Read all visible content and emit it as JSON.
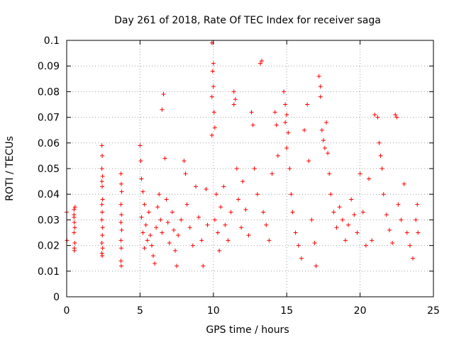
{
  "chart_data": {
    "type": "scatter",
    "title": "Day 261 of 2018, Rate Of TEC Index for receiver saga",
    "xlabel": "GPS time / hours",
    "ylabel": "ROTI / TECUs",
    "xlim": [
      0,
      25
    ],
    "ylim": [
      0,
      0.1
    ],
    "xticks": [
      "0",
      "5",
      "10",
      "15",
      "20",
      "25"
    ],
    "yticks": [
      "0",
      "0.01",
      "0.02",
      "0.03",
      "0.04",
      "0.05",
      "0.06",
      "0.07",
      "0.08",
      "0.09",
      "0.1"
    ],
    "grid": true,
    "marker": "+",
    "color": "#ff0000",
    "points": [
      [
        0.0,
        0.033
      ],
      [
        0.02,
        0.022
      ],
      [
        0.5,
        0.034
      ],
      [
        0.5,
        0.031
      ],
      [
        0.52,
        0.029
      ],
      [
        0.55,
        0.027
      ],
      [
        0.5,
        0.025
      ],
      [
        0.55,
        0.021
      ],
      [
        0.52,
        0.019
      ],
      [
        0.5,
        0.032
      ],
      [
        0.57,
        0.035
      ],
      [
        0.53,
        0.018
      ],
      [
        2.4,
        0.059
      ],
      [
        2.42,
        0.055
      ],
      [
        2.4,
        0.05
      ],
      [
        2.45,
        0.047
      ],
      [
        2.4,
        0.045
      ],
      [
        2.42,
        0.043
      ],
      [
        2.45,
        0.038
      ],
      [
        2.4,
        0.036
      ],
      [
        2.42,
        0.033
      ],
      [
        2.4,
        0.03
      ],
      [
        2.45,
        0.027
      ],
      [
        2.43,
        0.024
      ],
      [
        2.4,
        0.021
      ],
      [
        2.45,
        0.019
      ],
      [
        2.4,
        0.017
      ],
      [
        2.42,
        0.016
      ],
      [
        3.7,
        0.048
      ],
      [
        3.72,
        0.044
      ],
      [
        3.75,
        0.041
      ],
      [
        3.7,
        0.036
      ],
      [
        3.73,
        0.032
      ],
      [
        3.7,
        0.029
      ],
      [
        3.75,
        0.026
      ],
      [
        3.7,
        0.022
      ],
      [
        3.72,
        0.019
      ],
      [
        3.7,
        0.014
      ],
      [
        3.72,
        0.012
      ],
      [
        5.0,
        0.059
      ],
      [
        5.05,
        0.053
      ],
      [
        5.1,
        0.046
      ],
      [
        5.2,
        0.041
      ],
      [
        5.3,
        0.036
      ],
      [
        5.1,
        0.031
      ],
      [
        5.4,
        0.028
      ],
      [
        5.2,
        0.025
      ],
      [
        5.5,
        0.022
      ],
      [
        5.3,
        0.019
      ],
      [
        5.6,
        0.033
      ],
      [
        5.7,
        0.024
      ],
      [
        5.8,
        0.02
      ],
      [
        5.9,
        0.016
      ],
      [
        6.0,
        0.013
      ],
      [
        6.1,
        0.027
      ],
      [
        6.2,
        0.035
      ],
      [
        6.3,
        0.04
      ],
      [
        6.4,
        0.03
      ],
      [
        6.5,
        0.025
      ],
      [
        6.5,
        0.073
      ],
      [
        6.6,
        0.079
      ],
      [
        6.7,
        0.054
      ],
      [
        6.8,
        0.038
      ],
      [
        6.9,
        0.029
      ],
      [
        7.0,
        0.021
      ],
      [
        7.2,
        0.033
      ],
      [
        7.3,
        0.026
      ],
      [
        7.4,
        0.018
      ],
      [
        7.5,
        0.012
      ],
      [
        7.6,
        0.024
      ],
      [
        7.8,
        0.03
      ],
      [
        8.0,
        0.053
      ],
      [
        8.1,
        0.048
      ],
      [
        8.2,
        0.036
      ],
      [
        8.4,
        0.027
      ],
      [
        8.6,
        0.02
      ],
      [
        8.8,
        0.043
      ],
      [
        9.0,
        0.031
      ],
      [
        9.2,
        0.022
      ],
      [
        9.3,
        0.012
      ],
      [
        9.5,
        0.042
      ],
      [
        9.6,
        0.028
      ],
      [
        9.9,
        0.099
      ],
      [
        10.0,
        0.091
      ],
      [
        9.95,
        0.088
      ],
      [
        10.0,
        0.082
      ],
      [
        9.9,
        0.078
      ],
      [
        10.05,
        0.072
      ],
      [
        9.9,
        0.063
      ],
      [
        10.1,
        0.066
      ],
      [
        10.2,
        0.04
      ],
      [
        10.1,
        0.03
      ],
      [
        10.3,
        0.025
      ],
      [
        10.4,
        0.018
      ],
      [
        10.5,
        0.035
      ],
      [
        10.7,
        0.043
      ],
      [
        10.8,
        0.028
      ],
      [
        11.0,
        0.022
      ],
      [
        11.2,
        0.033
      ],
      [
        11.4,
        0.08
      ],
      [
        11.5,
        0.077
      ],
      [
        11.4,
        0.075
      ],
      [
        11.6,
        0.05
      ],
      [
        11.7,
        0.038
      ],
      [
        11.9,
        0.027
      ],
      [
        12.0,
        0.045
      ],
      [
        12.2,
        0.034
      ],
      [
        12.4,
        0.024
      ],
      [
        12.6,
        0.072
      ],
      [
        12.7,
        0.067
      ],
      [
        12.8,
        0.05
      ],
      [
        13.0,
        0.04
      ],
      [
        13.2,
        0.091
      ],
      [
        13.3,
        0.092
      ],
      [
        13.4,
        0.033
      ],
      [
        13.6,
        0.028
      ],
      [
        13.8,
        0.022
      ],
      [
        14.0,
        0.048
      ],
      [
        14.2,
        0.072
      ],
      [
        14.3,
        0.067
      ],
      [
        14.4,
        0.055
      ],
      [
        14.8,
        0.08
      ],
      [
        14.9,
        0.075
      ],
      [
        15.0,
        0.071
      ],
      [
        14.9,
        0.068
      ],
      [
        15.1,
        0.064
      ],
      [
        15.0,
        0.058
      ],
      [
        15.2,
        0.05
      ],
      [
        15.3,
        0.04
      ],
      [
        15.4,
        0.033
      ],
      [
        15.6,
        0.025
      ],
      [
        15.8,
        0.02
      ],
      [
        16.0,
        0.015
      ],
      [
        16.2,
        0.065
      ],
      [
        16.4,
        0.075
      ],
      [
        16.5,
        0.053
      ],
      [
        16.7,
        0.03
      ],
      [
        16.9,
        0.021
      ],
      [
        17.0,
        0.012
      ],
      [
        17.2,
        0.086
      ],
      [
        17.3,
        0.082
      ],
      [
        17.3,
        0.078
      ],
      [
        17.4,
        0.065
      ],
      [
        17.5,
        0.061
      ],
      [
        17.6,
        0.058
      ],
      [
        17.7,
        0.068
      ],
      [
        17.8,
        0.056
      ],
      [
        17.9,
        0.048
      ],
      [
        18.0,
        0.04
      ],
      [
        18.2,
        0.033
      ],
      [
        18.4,
        0.027
      ],
      [
        18.6,
        0.035
      ],
      [
        18.8,
        0.03
      ],
      [
        19.0,
        0.022
      ],
      [
        19.2,
        0.028
      ],
      [
        19.4,
        0.038
      ],
      [
        19.6,
        0.032
      ],
      [
        19.8,
        0.025
      ],
      [
        20.0,
        0.048
      ],
      [
        20.2,
        0.033
      ],
      [
        20.4,
        0.02
      ],
      [
        20.6,
        0.046
      ],
      [
        20.8,
        0.022
      ],
      [
        21.0,
        0.071
      ],
      [
        21.2,
        0.07
      ],
      [
        21.3,
        0.06
      ],
      [
        21.4,
        0.055
      ],
      [
        21.5,
        0.05
      ],
      [
        21.6,
        0.04
      ],
      [
        21.8,
        0.032
      ],
      [
        22.0,
        0.026
      ],
      [
        22.2,
        0.021
      ],
      [
        22.4,
        0.071
      ],
      [
        22.5,
        0.07
      ],
      [
        22.6,
        0.036
      ],
      [
        22.8,
        0.03
      ],
      [
        23.0,
        0.044
      ],
      [
        23.2,
        0.025
      ],
      [
        23.4,
        0.02
      ],
      [
        23.6,
        0.015
      ],
      [
        23.8,
        0.03
      ],
      [
        23.9,
        0.036
      ],
      [
        23.95,
        0.025
      ]
    ]
  }
}
